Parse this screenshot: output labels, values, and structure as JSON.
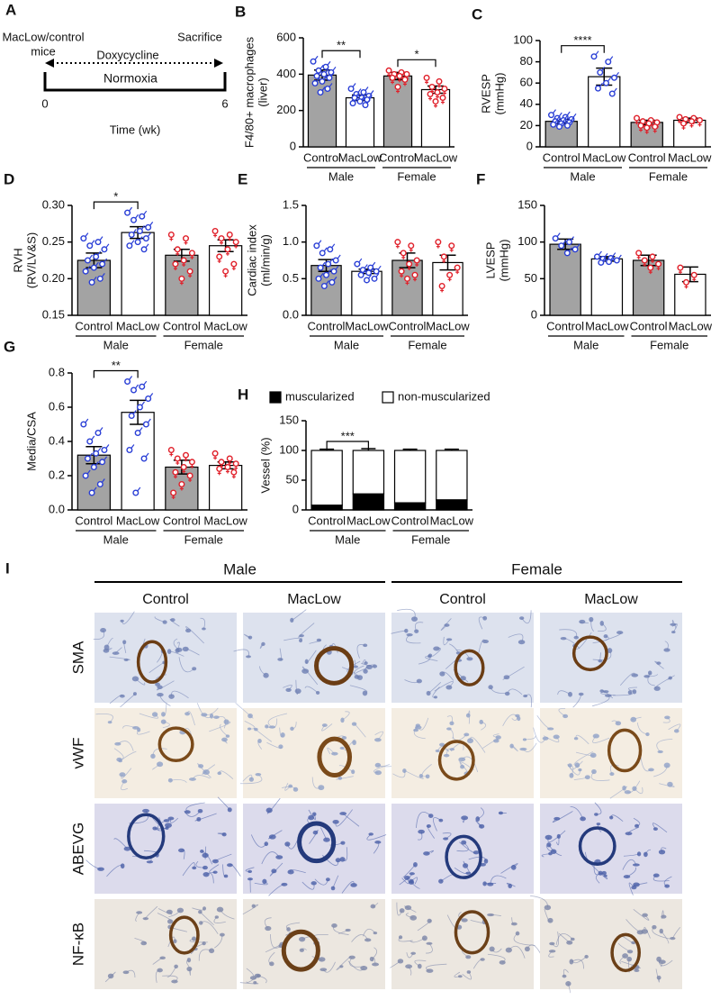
{
  "timeline": {
    "panel": "A",
    "subject": [
      "MacLow/control",
      "mice"
    ],
    "treatment": "Doxycycline",
    "endpoint": "Sacrifice",
    "condition": "Normoxia",
    "start": "0",
    "end": "6",
    "axis_label": "Time (wk)"
  },
  "chart_data": [
    {
      "type": "bar",
      "panel": "B",
      "y_label": [
        "F4/80+ macrophages",
        "(liver)"
      ],
      "categories": [
        "Control",
        "MacLow",
        "Control",
        "MacLow"
      ],
      "groups": [
        "Male",
        "Female"
      ],
      "values": [
        395,
        270,
        390,
        315
      ],
      "errors": [
        28,
        15,
        20,
        20
      ],
      "points": [
        [
          470,
          440,
          420,
          410,
          400,
          390,
          380,
          360,
          350,
          320,
          300
        ],
        [
          320,
          300,
          290,
          280,
          270,
          270,
          260,
          250,
          240,
          230
        ],
        [
          420,
          410,
          400,
          400,
          390,
          380,
          370,
          330
        ],
        [
          380,
          360,
          330,
          320,
          300,
          290,
          270,
          250
        ]
      ],
      "bar_colors": [
        "#a3a3a3",
        "#ffffff",
        "#a3a3a3",
        "#ffffff"
      ],
      "group_colors": [
        "#2a3fd6",
        "#e0202a"
      ],
      "significance": [
        {
          "from": 0,
          "to": 1,
          "label": "**"
        },
        {
          "from": 2,
          "to": 3,
          "label": "*"
        }
      ],
      "ylim": [
        0,
        600
      ],
      "yticks": [
        0,
        200,
        400,
        600
      ]
    },
    {
      "type": "bar",
      "panel": "C",
      "y_label": [
        "RVESP",
        "(mmHg)"
      ],
      "categories": [
        "Control",
        "MacLow",
        "Control",
        "MacLow"
      ],
      "groups": [
        "Male",
        "Female"
      ],
      "values": [
        24,
        66,
        23,
        25
      ],
      "errors": [
        2,
        8,
        2,
        2
      ],
      "points": [
        [
          30,
          28,
          27,
          26,
          25,
          24,
          23,
          22,
          21,
          20,
          19
        ],
        [
          85,
          80,
          70,
          65,
          60,
          55,
          50
        ],
        [
          27,
          25,
          24,
          23,
          22,
          20,
          19,
          18
        ],
        [
          28,
          27,
          26,
          25,
          24,
          22
        ]
      ],
      "bar_colors": [
        "#a3a3a3",
        "#ffffff",
        "#a3a3a3",
        "#ffffff"
      ],
      "group_colors": [
        "#2a3fd6",
        "#e0202a"
      ],
      "significance": [
        {
          "from": 0,
          "to": 1,
          "label": "****"
        }
      ],
      "ylim": [
        0,
        100
      ],
      "yticks": [
        0,
        20,
        40,
        60,
        80,
        100
      ]
    },
    {
      "type": "bar",
      "panel": "D",
      "y_label": [
        "RVH",
        "(RV/LV&S)"
      ],
      "categories": [
        "Control",
        "MacLow",
        "Control",
        "MacLow"
      ],
      "groups": [
        "Male",
        "Female"
      ],
      "values": [
        0.225,
        0.263,
        0.232,
        0.245
      ],
      "errors": [
        0.01,
        0.008,
        0.008,
        0.008
      ],
      "points": [
        [
          0.255,
          0.25,
          0.245,
          0.24,
          0.23,
          0.225,
          0.22,
          0.215,
          0.21,
          0.2,
          0.195
        ],
        [
          0.29,
          0.285,
          0.28,
          0.27,
          0.265,
          0.26,
          0.255,
          0.25,
          0.245,
          0.24
        ],
        [
          0.26,
          0.255,
          0.24,
          0.235,
          0.225,
          0.22,
          0.21,
          0.2
        ],
        [
          0.265,
          0.26,
          0.255,
          0.25,
          0.24,
          0.23,
          0.22,
          0.21
        ]
      ],
      "bar_colors": [
        "#a3a3a3",
        "#ffffff",
        "#a3a3a3",
        "#ffffff"
      ],
      "group_colors": [
        "#2a3fd6",
        "#e0202a"
      ],
      "significance": [
        {
          "from": 0,
          "to": 1,
          "label": "*"
        }
      ],
      "ylim": [
        0.15,
        0.3
      ],
      "yticks": [
        0.15,
        {
          "value": 0.2,
          "label": "0.20"
        },
        0.25,
        {
          "value": 0.3,
          "label": "0.30"
        }
      ]
    },
    {
      "type": "bar",
      "panel": "E",
      "y_label": [
        "Cardiac index",
        "(ml/min/g)"
      ],
      "categories": [
        "Control",
        "MacLow",
        "Control",
        "MacLow"
      ],
      "groups": [
        "Male",
        "Female"
      ],
      "values": [
        0.68,
        0.6,
        0.75,
        0.72
      ],
      "errors": [
        0.08,
        0.03,
        0.1,
        0.1
      ],
      "points": [
        [
          0.95,
          0.9,
          0.85,
          0.75,
          0.7,
          0.65,
          0.6,
          0.55,
          0.5,
          0.45,
          0.4
        ],
        [
          0.7,
          0.65,
          0.62,
          0.6,
          0.58,
          0.55,
          0.5,
          0.48
        ],
        [
          1.0,
          0.95,
          0.85,
          0.75,
          0.7,
          0.6,
          0.55,
          0.5
        ],
        [
          1.0,
          0.95,
          0.8,
          0.65,
          0.55,
          0.4
        ]
      ],
      "bar_colors": [
        "#a3a3a3",
        "#ffffff",
        "#a3a3a3",
        "#ffffff"
      ],
      "group_colors": [
        "#2a3fd6",
        "#e0202a"
      ],
      "significance": [],
      "ylim": [
        0,
        1.5
      ],
      "yticks": [
        {
          "value": 0,
          "label": "0.0"
        },
        0.5,
        {
          "value": 1,
          "label": "1.0"
        },
        1.5
      ]
    },
    {
      "type": "bar",
      "panel": "F",
      "y_label": [
        "LVESP",
        "(mmHg)"
      ],
      "categories": [
        "Control",
        "MacLow",
        "Control",
        "MacLow"
      ],
      "groups": [
        "Male",
        "Female"
      ],
      "values": [
        97,
        77,
        75,
        56
      ],
      "errors": [
        7,
        3,
        7,
        10
      ],
      "points": [
        [
          105,
          100,
          95,
          90,
          85
        ],
        [
          80,
          78,
          77,
          75,
          73,
          72
        ],
        [
          85,
          80,
          75,
          70,
          65
        ],
        [
          65,
          55,
          45
        ]
      ],
      "bar_colors": [
        "#a3a3a3",
        "#ffffff",
        "#a3a3a3",
        "#ffffff"
      ],
      "group_colors": [
        "#2a3fd6",
        "#e0202a"
      ],
      "significance": [],
      "ylim": [
        0,
        150
      ],
      "yticks": [
        0,
        50,
        100,
        150
      ]
    },
    {
      "type": "bar",
      "panel": "G",
      "y_label": [
        "Media/CSA"
      ],
      "categories": [
        "Control",
        "MacLow",
        "Control",
        "MacLow"
      ],
      "groups": [
        "Male",
        "Female"
      ],
      "values": [
        0.32,
        0.57,
        0.25,
        0.26
      ],
      "errors": [
        0.05,
        0.07,
        0.04,
        0.02
      ],
      "points": [
        [
          0.5,
          0.45,
          0.4,
          0.35,
          0.33,
          0.3,
          0.28,
          0.25,
          0.2,
          0.15,
          0.1
        ],
        [
          0.75,
          0.72,
          0.7,
          0.65,
          0.6,
          0.55,
          0.5,
          0.45,
          0.35,
          0.3,
          0.1
        ],
        [
          0.35,
          0.32,
          0.3,
          0.28,
          0.25,
          0.22,
          0.2,
          0.15,
          0.1
        ],
        [
          0.33,
          0.3,
          0.28,
          0.27,
          0.25,
          0.24,
          0.22
        ]
      ],
      "bar_colors": [
        "#a3a3a3",
        "#ffffff",
        "#a3a3a3",
        "#ffffff"
      ],
      "group_colors": [
        "#2a3fd6",
        "#e0202a"
      ],
      "significance": [
        {
          "from": 0,
          "to": 1,
          "label": "**"
        }
      ],
      "ylim": [
        0,
        0.8
      ],
      "yticks": [
        {
          "value": 0,
          "label": "0.0"
        },
        0.2,
        0.4,
        0.6,
        0.8
      ]
    },
    {
      "type": "stacked_bar",
      "panel": "H",
      "y_label": [
        "Vessel (%)"
      ],
      "categories": [
        "Control",
        "MacLow",
        "Control",
        "MacLow"
      ],
      "groups": [
        "Male",
        "Female"
      ],
      "series": [
        {
          "name": "muscularized",
          "color": "#000000",
          "values": [
            8,
            27,
            12,
            17
          ],
          "errors": [
            1,
            3,
            2,
            2
          ]
        },
        {
          "name": "non-muscularized",
          "color": "#ffffff",
          "values": [
            92,
            73,
            88,
            83
          ],
          "errors": [
            2,
            3,
            2,
            2
          ]
        }
      ],
      "significance": [
        {
          "from": 0,
          "to": 1,
          "label": "***"
        }
      ],
      "legend": "top",
      "ylim": [
        0,
        150
      ],
      "yticks": [
        0,
        50,
        100,
        150
      ]
    }
  ],
  "histology": {
    "panel": "I",
    "groups": [
      "Male",
      "Female"
    ],
    "columns": [
      "Control",
      "MacLow",
      "Control",
      "MacLow"
    ],
    "rows": [
      "SMA",
      "vWF",
      "ABEVG",
      "NF-κB"
    ]
  }
}
